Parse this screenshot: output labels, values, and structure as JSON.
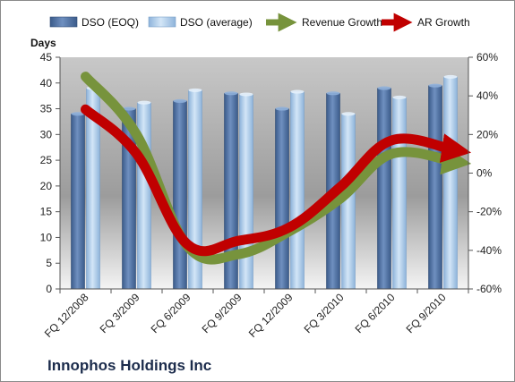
{
  "chart_data": {
    "type": "bar",
    "categories": [
      "FQ 12/2008",
      "FQ 3/2009",
      "FQ 6/2009",
      "FQ 9/2009",
      "FQ 12/2009",
      "FQ 3/2010",
      "FQ 6/2010",
      "FQ 9/2010"
    ],
    "series": [
      {
        "name": "DSO (EOQ)",
        "axis": "left",
        "kind": "bar",
        "values": [
          34,
          35,
          36.5,
          38,
          35,
          38,
          39,
          39.5
        ],
        "color": "#4a6fa0"
      },
      {
        "name": "DSO (average)",
        "axis": "left",
        "kind": "bar",
        "values": [
          39,
          36.2,
          38.6,
          37.8,
          38.3,
          34,
          37.2,
          41.2
        ],
        "color": "#a9c8e6"
      },
      {
        "name": "Revenue Growth",
        "axis": "right",
        "kind": "line",
        "values": [
          0.5,
          0.2,
          -0.38,
          -0.42,
          -0.3,
          -0.13,
          0.1,
          0.06
        ],
        "color": "#77933c"
      },
      {
        "name": "AR Growth",
        "axis": "right",
        "kind": "line",
        "values": [
          0.33,
          0.1,
          -0.37,
          -0.35,
          -0.28,
          -0.07,
          0.17,
          0.12
        ],
        "color": "#c00000"
      }
    ],
    "ylabel": "Days",
    "ylim": [
      0,
      45
    ],
    "y_ticks": [
      "0",
      "5",
      "10",
      "15",
      "20",
      "25",
      "30",
      "35",
      "40",
      "45"
    ],
    "y2lim": [
      -0.6,
      0.6
    ],
    "y2_ticks": [
      "-60%",
      "-40%",
      "-20%",
      "0%",
      "20%",
      "40%",
      "60%"
    ],
    "legend": "top",
    "grid": false
  },
  "company_name": "Innophos Holdings Inc",
  "colors": {
    "plot_gradient_top": "#c8c8c8",
    "plot_gradient_bottom": "#f4f4f4"
  }
}
